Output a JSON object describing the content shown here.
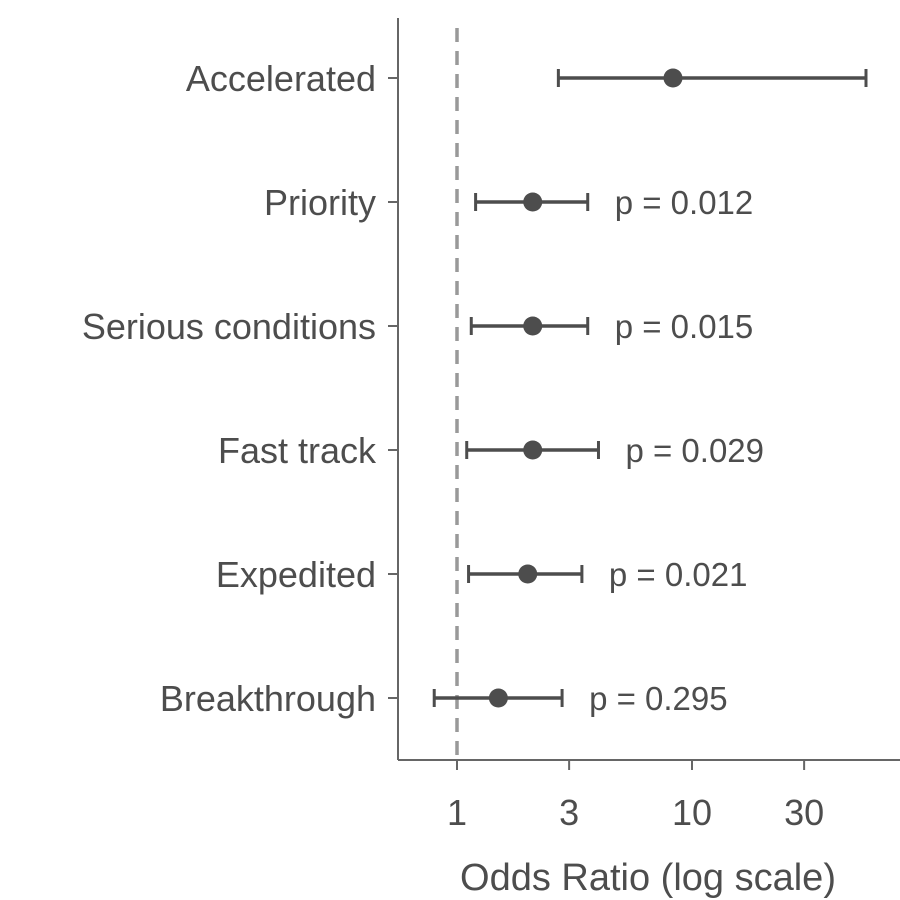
{
  "chart_data": {
    "type": "scatter",
    "subtype": "forest-plot",
    "xlabel": "Odds Ratio (log scale)",
    "xscale": "log",
    "xlim": [
      0.6,
      65
    ],
    "xticks": [
      1,
      3,
      10,
      30
    ],
    "xtick_labels": [
      "1",
      "3",
      "10",
      "30"
    ],
    "reference_line": 1,
    "grid": false,
    "colors": {
      "marks": "#4d4d4d",
      "reference_line": "#999999",
      "axis": "#666666"
    },
    "rows": [
      {
        "label": "Accelerated",
        "estimate": 8.3,
        "ci_low": 2.7,
        "ci_high": 55,
        "p_label": ""
      },
      {
        "label": "Priority",
        "estimate": 2.1,
        "ci_low": 1.2,
        "ci_high": 3.6,
        "p_label": "p = 0.012"
      },
      {
        "label": "Serious conditions",
        "estimate": 2.1,
        "ci_low": 1.15,
        "ci_high": 3.6,
        "p_label": "p = 0.015"
      },
      {
        "label": "Fast track",
        "estimate": 2.1,
        "ci_low": 1.1,
        "ci_high": 4.0,
        "p_label": "p = 0.029"
      },
      {
        "label": "Expedited",
        "estimate": 2.0,
        "ci_low": 1.12,
        "ci_high": 3.4,
        "p_label": "p = 0.021"
      },
      {
        "label": "Breakthrough",
        "estimate": 1.5,
        "ci_low": 0.8,
        "ci_high": 2.8,
        "p_label": "p = 0.295"
      }
    ]
  }
}
